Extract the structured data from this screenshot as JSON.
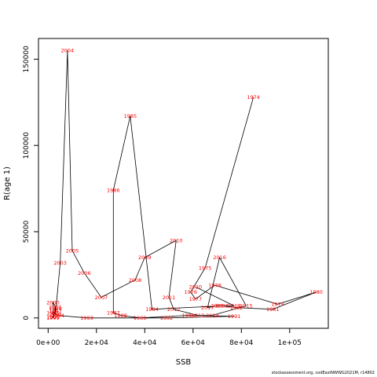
{
  "chart_data": {
    "type": "line",
    "xlabel": "SSB",
    "ylabel": "R(age 1)",
    "xlim": [
      -4000,
      116000
    ],
    "ylim": [
      -6000,
      162000
    ],
    "x_ticks": [
      0,
      20000,
      40000,
      60000,
      80000,
      100000
    ],
    "x_tick_labels": [
      "0e+00",
      "2e+04",
      "4e+04",
      "6e+04",
      "8e+04",
      "1e+05"
    ],
    "y_ticks": [
      0,
      50000,
      100000,
      150000
    ],
    "y_tick_labels": [
      "0",
      "50000",
      "100000",
      "150000"
    ],
    "series_color": "#000000",
    "label_color": "#ff0000",
    "points": [
      {
        "year": "1974",
        "x": 85000,
        "y": 128000
      },
      {
        "year": "1975",
        "x": 65000,
        "y": 29000
      },
      {
        "year": "1976",
        "x": 59000,
        "y": 15000
      },
      {
        "year": "1977",
        "x": 61000,
        "y": 11000
      },
      {
        "year": "1978",
        "x": 69000,
        "y": 19000
      },
      {
        "year": "1979",
        "x": 95000,
        "y": 8000
      },
      {
        "year": "1980",
        "x": 111000,
        "y": 15000
      },
      {
        "year": "1981",
        "x": 93000,
        "y": 5000
      },
      {
        "year": "1982",
        "x": 78000,
        "y": 6000
      },
      {
        "year": "1983",
        "x": 72000,
        "y": 7000
      },
      {
        "year": "1984",
        "x": 43000,
        "y": 5000
      },
      {
        "year": "1985",
        "x": 34000,
        "y": 117000
      },
      {
        "year": "1986",
        "x": 27000,
        "y": 74000
      },
      {
        "year": "1987",
        "x": 27000,
        "y": 3000
      },
      {
        "year": "1988",
        "x": 30000,
        "y": 1500
      },
      {
        "year": "1989",
        "x": 38000,
        "y": 0
      },
      {
        "year": "1990",
        "x": 58000,
        "y": 1500
      },
      {
        "year": "1991",
        "x": 77000,
        "y": 1000
      },
      {
        "year": "1992",
        "x": 49000,
        "y": 0
      },
      {
        "year": "1993",
        "x": 16000,
        "y": 0
      },
      {
        "year": "1994",
        "x": 4000,
        "y": 1500
      },
      {
        "year": "1995",
        "x": 2000,
        "y": 3000
      },
      {
        "year": "1996",
        "x": 2000,
        "y": 500
      },
      {
        "year": "1997",
        "x": 3000,
        "y": 4000
      },
      {
        "year": "1998",
        "x": 3000,
        "y": 5500
      },
      {
        "year": "1999",
        "x": 2000,
        "y": 0
      },
      {
        "year": "2000",
        "x": 2000,
        "y": 9000
      },
      {
        "year": "2001",
        "x": 3000,
        "y": 6500
      },
      {
        "year": "2002",
        "x": 3000,
        "y": 2000
      },
      {
        "year": "2003",
        "x": 5000,
        "y": 32000
      },
      {
        "year": "2004",
        "x": 8000,
        "y": 155000
      },
      {
        "year": "2005",
        "x": 10000,
        "y": 39000
      },
      {
        "year": "2006",
        "x": 15000,
        "y": 26000
      },
      {
        "year": "2007",
        "x": 22000,
        "y": 12000
      },
      {
        "year": "2008",
        "x": 36000,
        "y": 22000
      },
      {
        "year": "2009",
        "x": 40000,
        "y": 35000
      },
      {
        "year": "2010",
        "x": 53000,
        "y": 45000
      },
      {
        "year": "2011",
        "x": 50000,
        "y": 12000
      },
      {
        "year": "2012",
        "x": 52000,
        "y": 5000
      },
      {
        "year": "2013",
        "x": 62000,
        "y": 1500
      },
      {
        "year": "2014",
        "x": 68000,
        "y": 1500
      },
      {
        "year": "2015",
        "x": 82000,
        "y": 7000
      },
      {
        "year": "2016",
        "x": 71000,
        "y": 35000
      },
      {
        "year": "2017",
        "x": 66000,
        "y": 6000
      },
      {
        "year": "2018",
        "x": 70000,
        "y": 7000
      },
      {
        "year": "2019",
        "x": 77000,
        "y": 7000
      },
      {
        "year": "2020",
        "x": 61000,
        "y": 18000
      }
    ]
  },
  "source_note": "stockassessment.org, codEastNWWG2021M, r14802"
}
